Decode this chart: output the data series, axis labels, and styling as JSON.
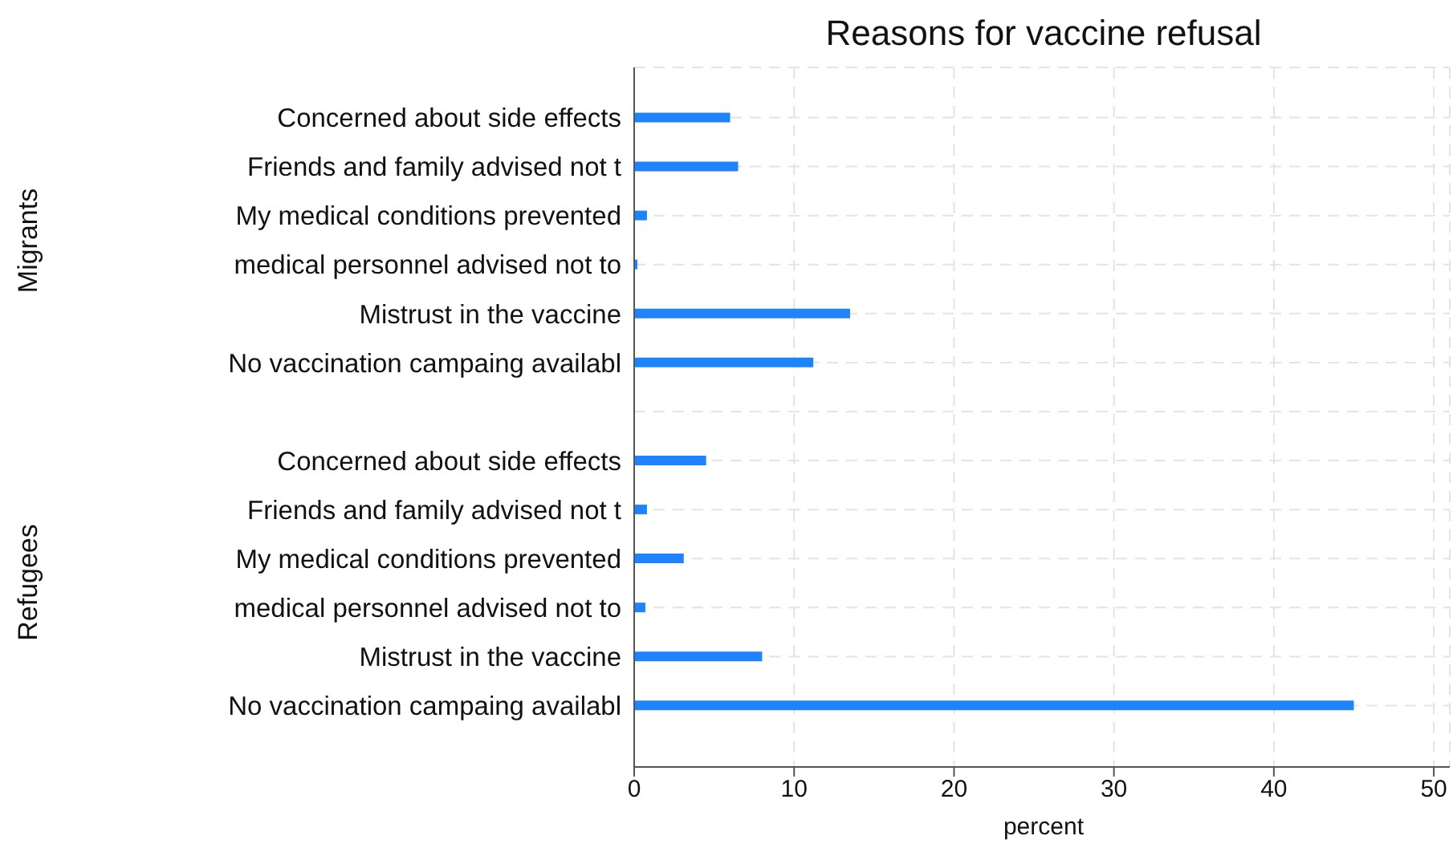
{
  "chart_data": {
    "type": "bar",
    "orientation": "horizontal",
    "title": "Reasons for vaccine refusal",
    "xlabel": "percent",
    "categories": [
      "Concerned about side effects",
      "Friends and family advised not t",
      "My medical conditions prevented",
      "medical personnel advised not to",
      "Mistrust in the vaccine",
      "No vaccination campaing availabl",
      null,
      "Concerned about side effects",
      "Friends and family advised not t",
      "My medical conditions prevented",
      "medical personnel advised not to",
      "Mistrust in the vaccine",
      "No vaccination campaing availabl"
    ],
    "values": [
      6.0,
      6.5,
      0.8,
      0.2,
      13.5,
      11.2,
      null,
      4.5,
      0.8,
      3.1,
      0.7,
      8.0,
      45
    ],
    "color": "#1f83fe",
    "xlim": [
      0,
      51
    ],
    "xticks": [
      0,
      10,
      20,
      30,
      40,
      50
    ],
    "grid": true,
    "annotations": [
      "Migrants",
      "Refugees"
    ]
  }
}
